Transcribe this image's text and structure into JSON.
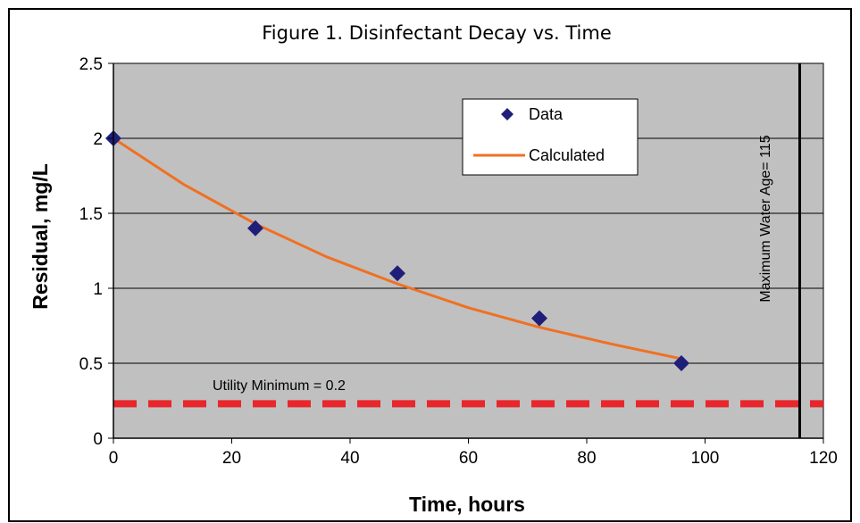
{
  "chart_data": {
    "type": "scatter",
    "title": "Figure 1.  Disinfectant Decay vs. Time",
    "xlabel": "Time, hours",
    "ylabel": "Residual, mg/L",
    "xlim": [
      0,
      120
    ],
    "ylim": [
      0,
      2.5
    ],
    "x_ticks": [
      "0",
      "20",
      "40",
      "60",
      "80",
      "100",
      "120"
    ],
    "y_ticks": [
      "0",
      "0.5",
      "1",
      "1.5",
      "2",
      "2.5"
    ],
    "grid": "horizontal",
    "legend_position": "top-center",
    "series": [
      {
        "name": "Data",
        "marker": "diamond",
        "color": "#1f1f7a",
        "x": [
          0,
          24,
          48,
          72,
          96
        ],
        "y": [
          2.0,
          1.4,
          1.1,
          0.8,
          0.5
        ]
      },
      {
        "name": "Calculated",
        "line": "solid",
        "color": "#f07022",
        "x": [
          0,
          12,
          24,
          36,
          48,
          60,
          72,
          84,
          96
        ],
        "y": [
          2.0,
          1.69,
          1.43,
          1.21,
          1.03,
          0.87,
          0.74,
          0.63,
          0.53
        ]
      }
    ],
    "annotations": {
      "utility_minimum": {
        "label": "Utility Minimum = 0.2",
        "y": 0.23,
        "color": "#e8262b"
      },
      "max_water_age": {
        "label": "Maximum Water Age= 115",
        "x": 116,
        "color": "#000000"
      }
    },
    "plot_background": "#c0c0c0"
  }
}
